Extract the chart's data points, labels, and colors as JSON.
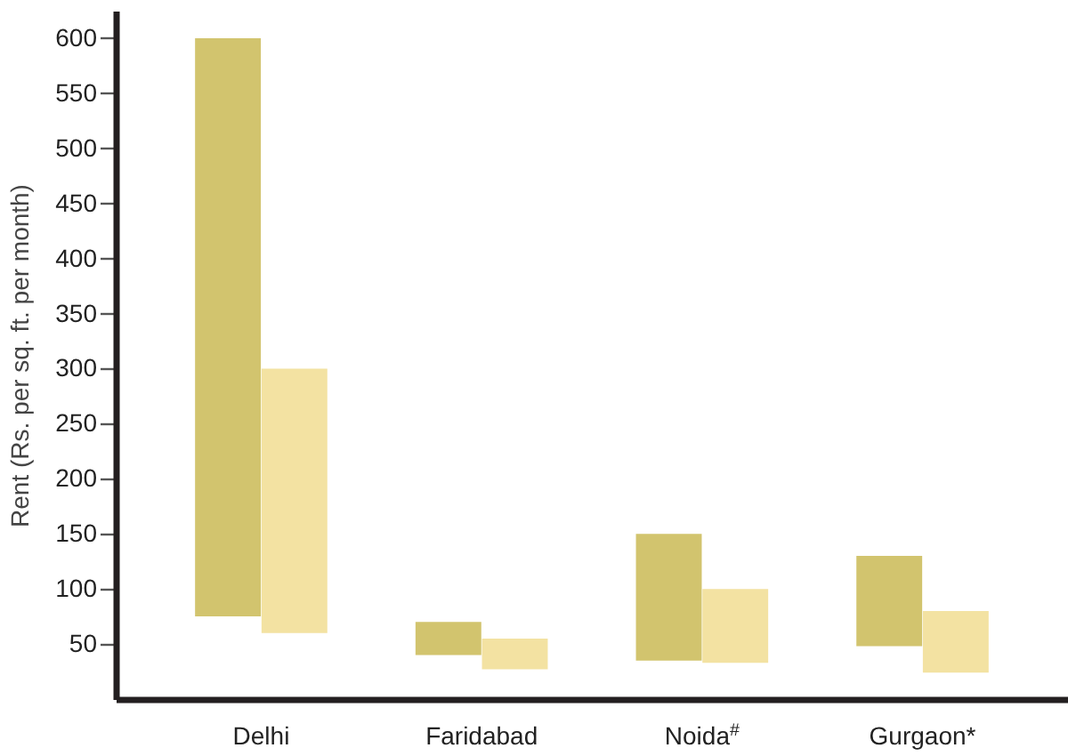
{
  "chart_data": {
    "type": "bar",
    "ylabel": "Rent (Rs. per sq. ft. per month)",
    "categories": [
      "Delhi",
      "Faridabad",
      "Noida$^{#}$",
      "Gurgaon*"
    ],
    "series": [
      {
        "color": "#d2c46e",
        "base": [
          75,
          40,
          35,
          48
        ],
        "values": [
          525,
          30,
          115,
          82
        ]
      },
      {
        "color": "#f3e2a2",
        "base": [
          60,
          27,
          33,
          24
        ],
        "values": [
          240,
          28,
          67,
          56
        ]
      }
    ],
    "ylim": [
      0,
      625
    ],
    "yticks": [
      50,
      100,
      150,
      200,
      250,
      300,
      350,
      400,
      450,
      500,
      550,
      600
    ]
  }
}
